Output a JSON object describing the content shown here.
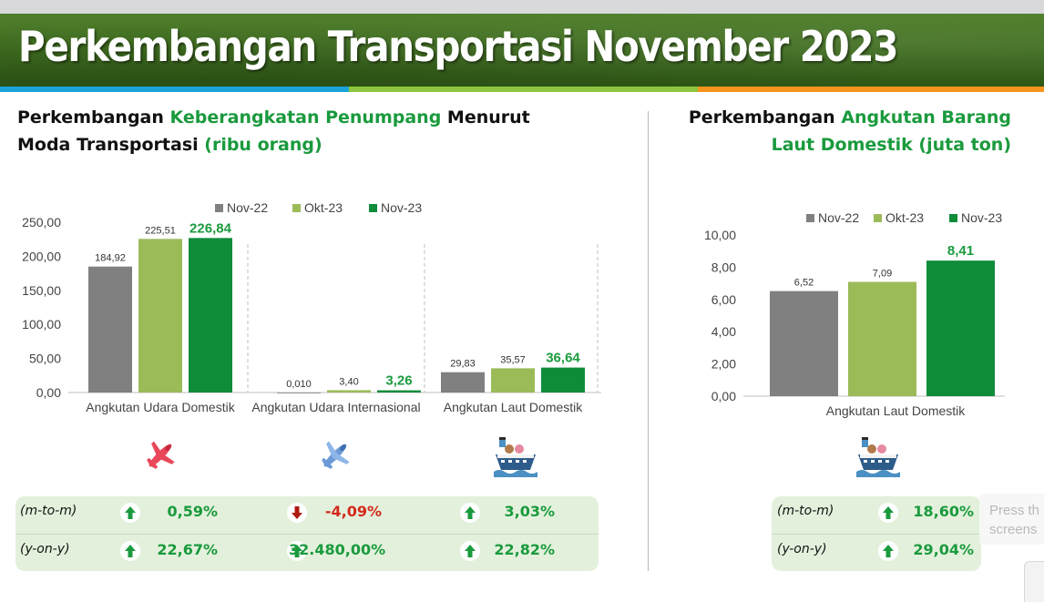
{
  "header": {
    "title": "Perkembangan Transportasi November 2023",
    "stripe_colors": [
      "#1aa3d9",
      "#8cc63f",
      "#f7941d"
    ]
  },
  "left_section": {
    "title_parts": [
      {
        "text": "Perkembangan ",
        "highlight": false
      },
      {
        "text": "Keberangkatan Penumpang",
        "highlight": true
      },
      {
        "text": " Menurut",
        "highlight": false
      },
      {
        "text": "\n",
        "highlight": false
      },
      {
        "text": "Moda Transportasi ",
        "highlight": false
      },
      {
        "text": "(ribu orang)",
        "highlight": true
      }
    ],
    "icons": [
      "airplane-domestic-icon",
      "airplane-international-icon",
      "ship-icon"
    ],
    "stats": {
      "rows": [
        {
          "label": "(m-to-m)",
          "cells": [
            {
              "value": "0,59%",
              "direction": "up"
            },
            {
              "value": "-4,09%",
              "direction": "down"
            },
            {
              "value": "3,03%",
              "direction": "up"
            }
          ]
        },
        {
          "label": "(y-on-y)",
          "cells": [
            {
              "value": "22,67%",
              "direction": "up"
            },
            {
              "value": "32.480,00%",
              "direction": "up"
            },
            {
              "value": "22,82%",
              "direction": "up"
            }
          ]
        }
      ]
    }
  },
  "right_section": {
    "title_parts": [
      {
        "text": "Perkembangan ",
        "highlight": false
      },
      {
        "text": "Angkutan Barang",
        "highlight": true
      },
      {
        "text": "\n",
        "highlight": false
      },
      {
        "text": "Laut Domestik (juta ton)",
        "highlight": true
      }
    ],
    "icons": [
      "ship-icon"
    ],
    "stats": {
      "rows": [
        {
          "label": "(m-to-m)",
          "cells": [
            {
              "value": "18,60%",
              "direction": "up"
            }
          ]
        },
        {
          "label": "(y-on-y)",
          "cells": [
            {
              "value": "29,04%",
              "direction": "up"
            }
          ]
        }
      ]
    }
  },
  "colors": {
    "nov22": "#808080",
    "okt23": "#9bbb59",
    "nov23": "#0f8c3a",
    "green_text": "#1a9a3d",
    "red_text": "#d42a1c",
    "stat_bg": "#e3f1dc"
  },
  "chart_data": [
    {
      "type": "bar",
      "categories": [
        "Angkutan Udara Domestik",
        "Angkutan Udara Internasional",
        "Angkutan Laut Domestik"
      ],
      "series": [
        {
          "name": "Nov-22",
          "values": [
            184.92,
            0.01,
            29.83
          ],
          "labels": [
            "184,92",
            "0,010",
            "29,83"
          ]
        },
        {
          "name": "Okt-23",
          "values": [
            225.51,
            3.4,
            35.57
          ],
          "labels": [
            "225,51",
            "3,40",
            "35,57"
          ]
        },
        {
          "name": "Nov-23",
          "values": [
            226.84,
            3.26,
            36.64
          ],
          "labels": [
            "226,84",
            "3,26",
            "36,64"
          ]
        }
      ],
      "yticks": [
        "0,00",
        "50,00",
        "100,00",
        "150,00",
        "200,00",
        "250,00"
      ],
      "ylim": [
        0,
        250
      ],
      "legend": "top",
      "grid": false
    },
    {
      "type": "bar",
      "categories": [
        "Angkutan Laut Domestik"
      ],
      "series": [
        {
          "name": "Nov-22",
          "values": [
            6.52
          ],
          "labels": [
            "6,52"
          ]
        },
        {
          "name": "Okt-23",
          "values": [
            7.09
          ],
          "labels": [
            "7,09"
          ]
        },
        {
          "name": "Nov-23",
          "values": [
            8.41
          ],
          "labels": [
            "8,41"
          ]
        }
      ],
      "yticks": [
        "0,00",
        "2,00",
        "4,00",
        "6,00",
        "8,00",
        "10,00"
      ],
      "ylim": [
        0,
        10
      ],
      "legend": "top",
      "grid": false
    }
  ],
  "overlay": {
    "toast_lines": [
      "Press th",
      "screens"
    ]
  }
}
